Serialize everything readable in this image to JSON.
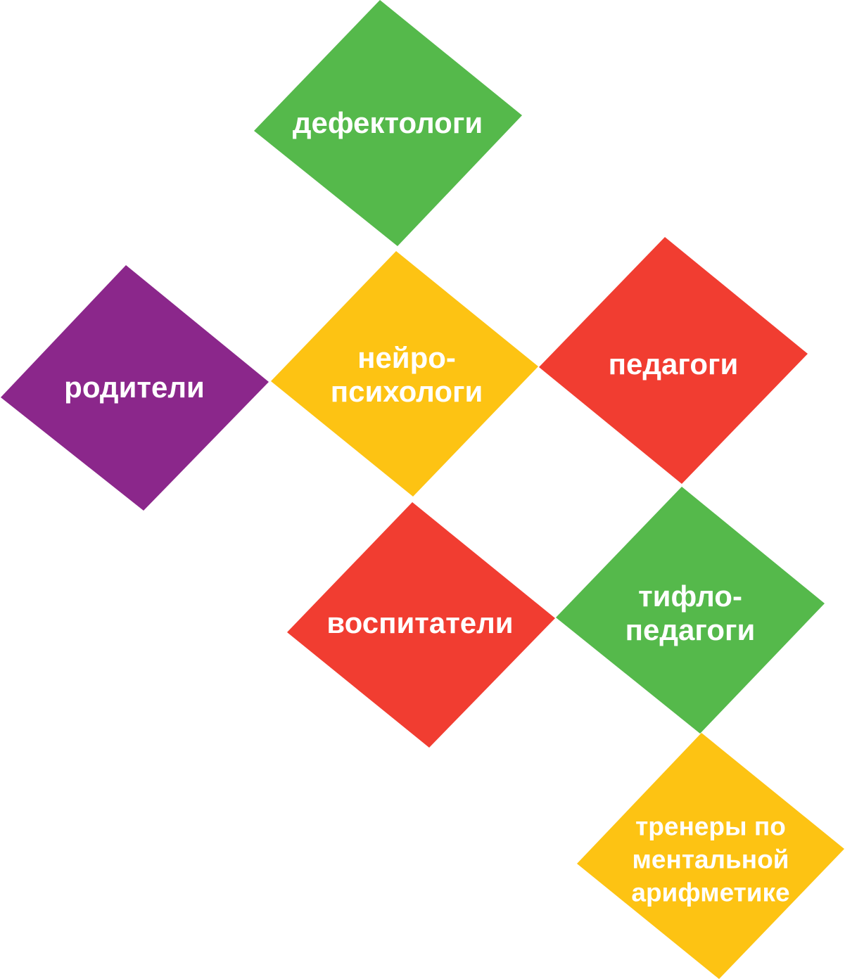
{
  "tiles": [
    {
      "id": "defektologi",
      "lines": [
        "дефектологи"
      ],
      "color": "#55b94b"
    },
    {
      "id": "roditeli",
      "lines": [
        "родители"
      ],
      "color": "#8b278b"
    },
    {
      "id": "neiropsikhologi",
      "lines": [
        "нейро-",
        "психологи"
      ],
      "color": "#fdc313"
    },
    {
      "id": "pedagogi",
      "lines": [
        "педагоги"
      ],
      "color": "#f13d31"
    },
    {
      "id": "vospitateli",
      "lines": [
        "воспитатели"
      ],
      "color": "#f13d31"
    },
    {
      "id": "tiflopedagogi",
      "lines": [
        "тифло-",
        "педагоги"
      ],
      "color": "#55b94b"
    },
    {
      "id": "trenery",
      "lines": [
        "тренеры по",
        "ментальной",
        "арифметике"
      ],
      "color": "#fdc313"
    }
  ]
}
